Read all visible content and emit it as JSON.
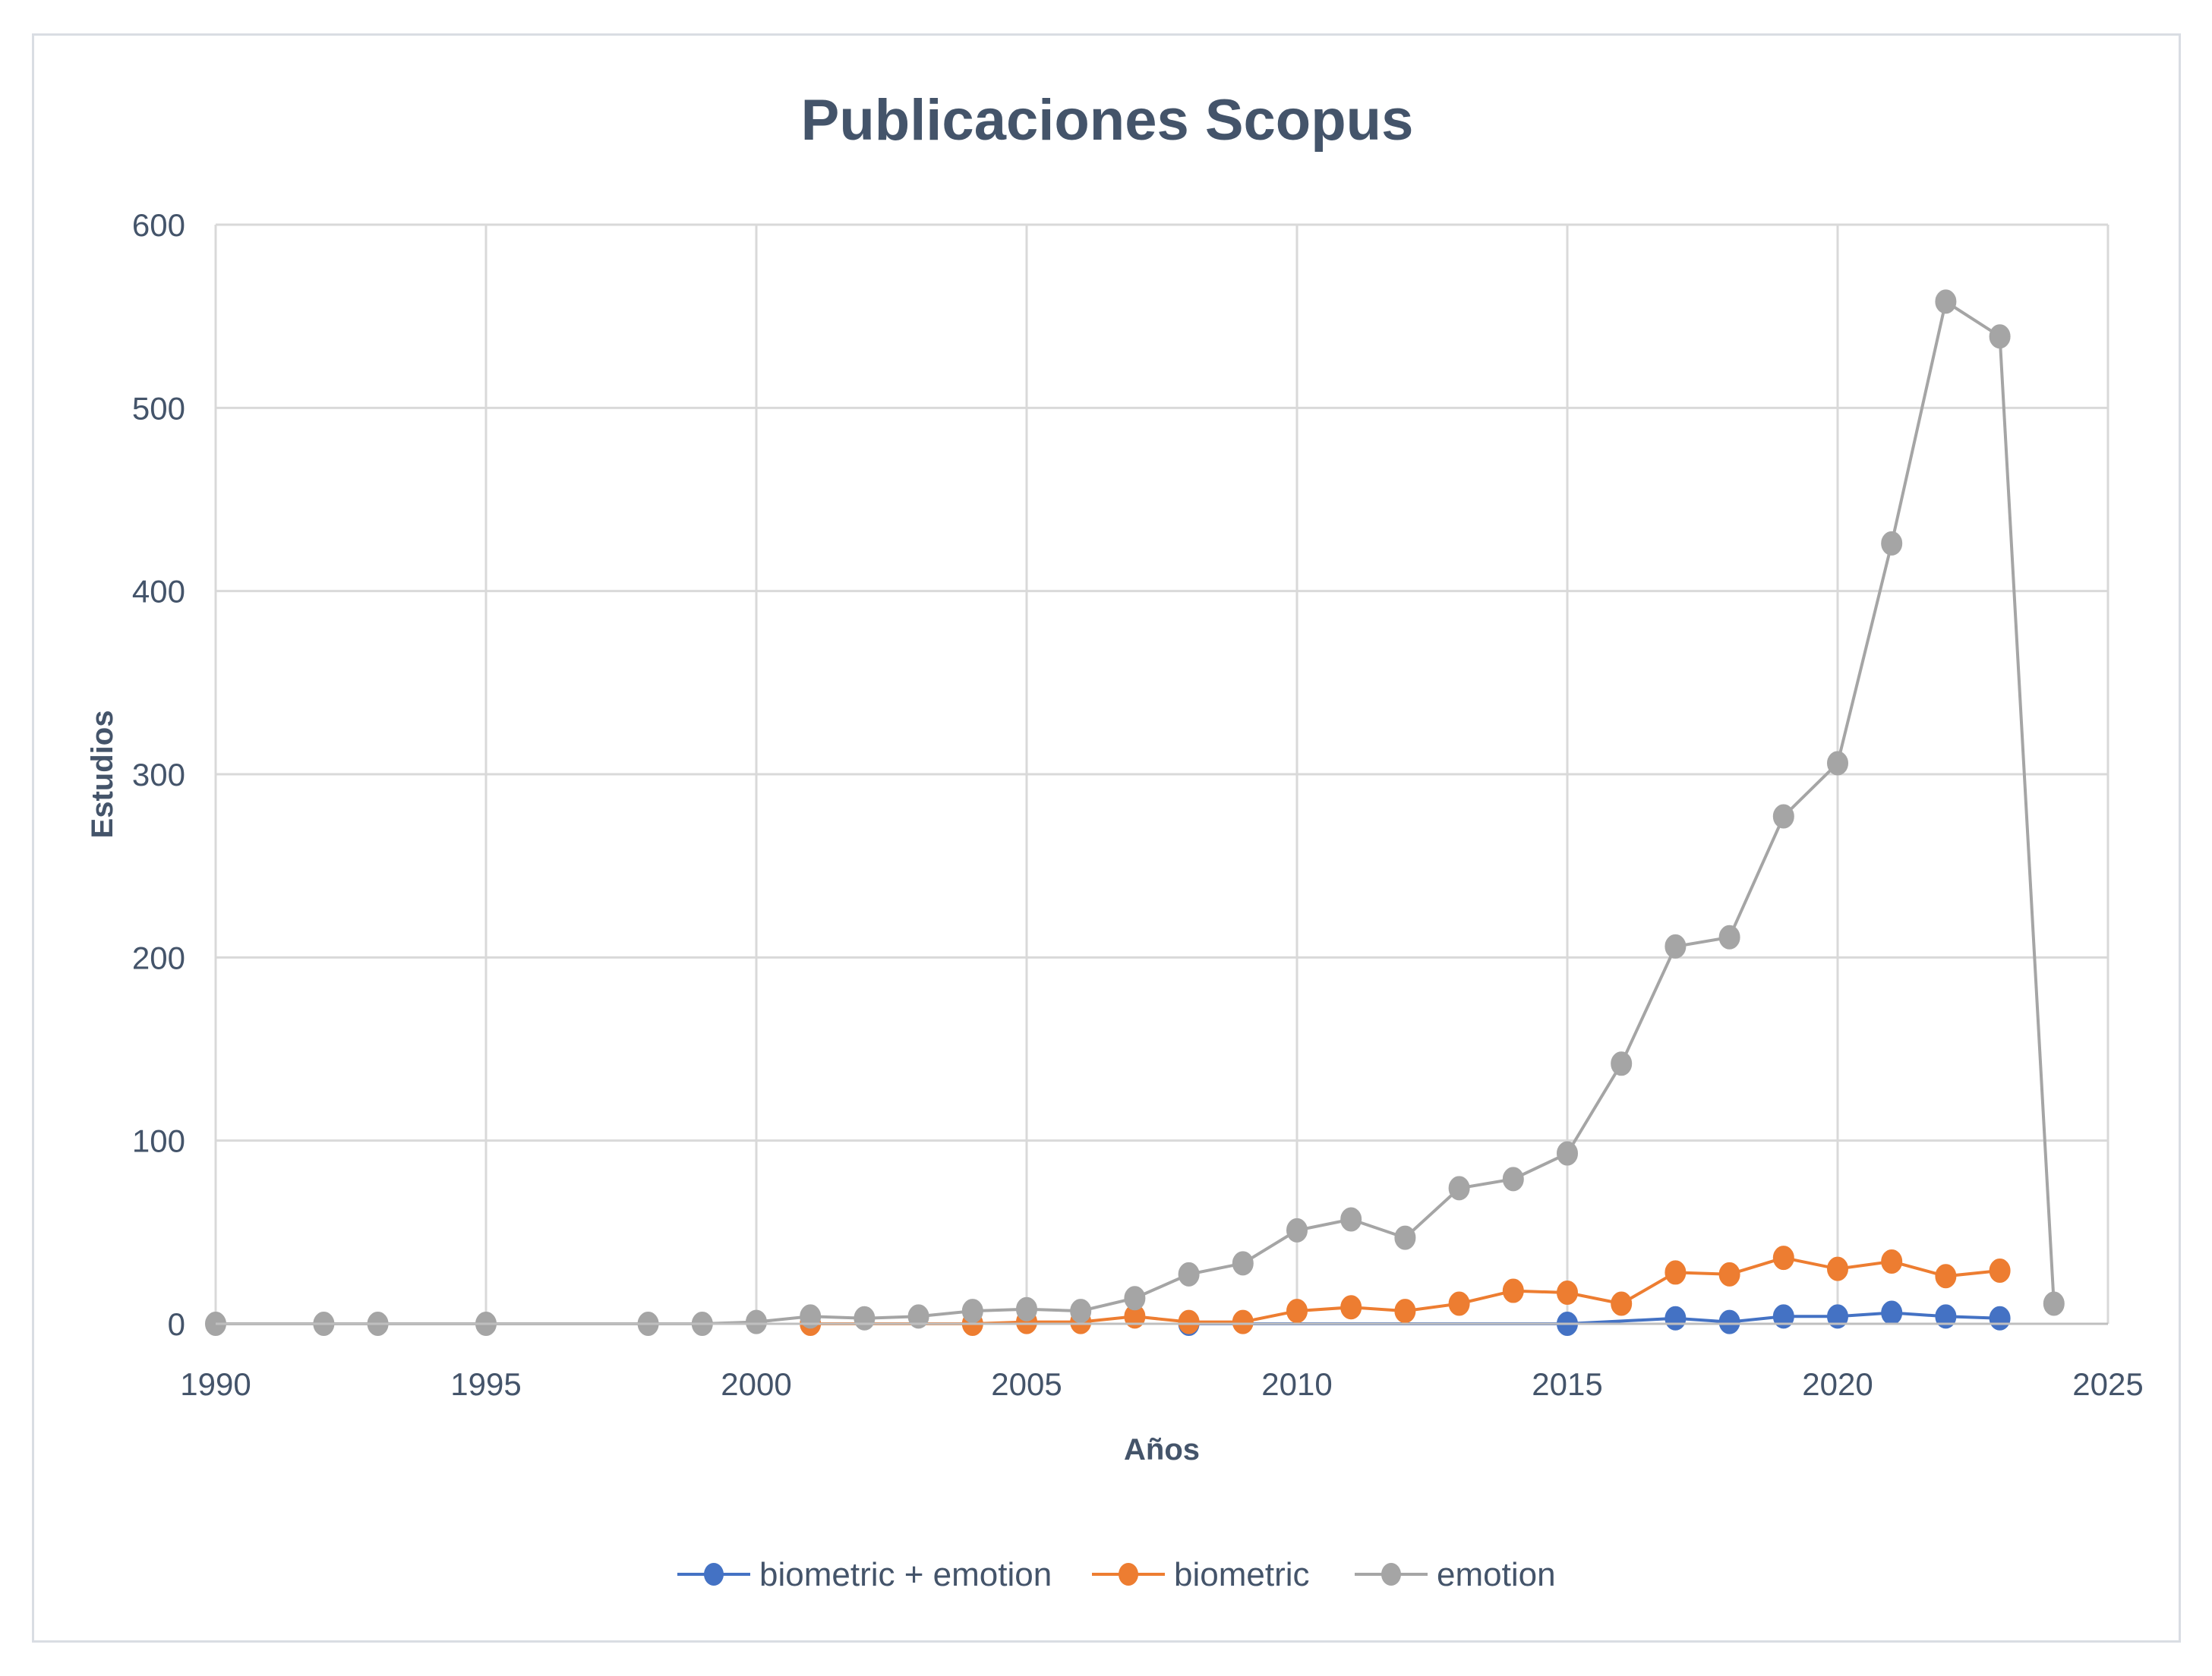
{
  "chart_data": {
    "type": "scatter",
    "title": "Publicaciones Scopus",
    "xlabel": "Años",
    "ylabel": "Estudios",
    "xlim": [
      1990,
      2025
    ],
    "ylim": [
      0,
      600
    ],
    "x_ticks": [
      1990,
      1995,
      2000,
      2005,
      2010,
      2015,
      2020,
      2025
    ],
    "y_ticks": [
      0,
      100,
      200,
      300,
      400,
      500,
      600
    ],
    "grid": true,
    "legend_position": "bottom",
    "series": [
      {
        "name": "biometric + emotion",
        "color": "#4472c4",
        "points": [
          {
            "x": 2008,
            "y": 0
          },
          {
            "x": 2015,
            "y": 0
          },
          {
            "x": 2017,
            "y": 3
          },
          {
            "x": 2018,
            "y": 1
          },
          {
            "x": 2019,
            "y": 4
          },
          {
            "x": 2020,
            "y": 4
          },
          {
            "x": 2021,
            "y": 6
          },
          {
            "x": 2022,
            "y": 4
          },
          {
            "x": 2023,
            "y": 3
          }
        ]
      },
      {
        "name": "biometric",
        "color": "#ed7d31",
        "points": [
          {
            "x": 2001,
            "y": 0
          },
          {
            "x": 2004,
            "y": 0
          },
          {
            "x": 2005,
            "y": 1
          },
          {
            "x": 2006,
            "y": 1
          },
          {
            "x": 2007,
            "y": 4
          },
          {
            "x": 2008,
            "y": 1
          },
          {
            "x": 2009,
            "y": 1
          },
          {
            "x": 2010,
            "y": 7
          },
          {
            "x": 2011,
            "y": 9
          },
          {
            "x": 2012,
            "y": 7
          },
          {
            "x": 2013,
            "y": 11
          },
          {
            "x": 2014,
            "y": 18
          },
          {
            "x": 2015,
            "y": 17
          },
          {
            "x": 2016,
            "y": 11
          },
          {
            "x": 2017,
            "y": 28
          },
          {
            "x": 2018,
            "y": 27
          },
          {
            "x": 2019,
            "y": 36
          },
          {
            "x": 2020,
            "y": 30
          },
          {
            "x": 2021,
            "y": 34
          },
          {
            "x": 2022,
            "y": 26
          },
          {
            "x": 2023,
            "y": 29
          }
        ]
      },
      {
        "name": "emotion",
        "color": "#a5a5a5",
        "points": [
          {
            "x": 1990,
            "y": 0
          },
          {
            "x": 1992,
            "y": 0
          },
          {
            "x": 1993,
            "y": 0
          },
          {
            "x": 1995,
            "y": 0
          },
          {
            "x": 1998,
            "y": 0
          },
          {
            "x": 1999,
            "y": 0
          },
          {
            "x": 2000,
            "y": 1
          },
          {
            "x": 2001,
            "y": 4
          },
          {
            "x": 2002,
            "y": 3
          },
          {
            "x": 2003,
            "y": 4
          },
          {
            "x": 2004,
            "y": 7
          },
          {
            "x": 2005,
            "y": 8
          },
          {
            "x": 2006,
            "y": 7
          },
          {
            "x": 2007,
            "y": 14
          },
          {
            "x": 2008,
            "y": 27
          },
          {
            "x": 2009,
            "y": 33
          },
          {
            "x": 2010,
            "y": 51
          },
          {
            "x": 2011,
            "y": 57
          },
          {
            "x": 2012,
            "y": 47
          },
          {
            "x": 2013,
            "y": 74
          },
          {
            "x": 2014,
            "y": 79
          },
          {
            "x": 2015,
            "y": 93
          },
          {
            "x": 2016,
            "y": 142
          },
          {
            "x": 2017,
            "y": 206
          },
          {
            "x": 2018,
            "y": 211
          },
          {
            "x": 2019,
            "y": 277
          },
          {
            "x": 2020,
            "y": 306
          },
          {
            "x": 2021,
            "y": 426
          },
          {
            "x": 2022,
            "y": 558
          },
          {
            "x": 2023,
            "y": 539
          },
          {
            "x": 2024,
            "y": 11
          }
        ]
      }
    ]
  }
}
